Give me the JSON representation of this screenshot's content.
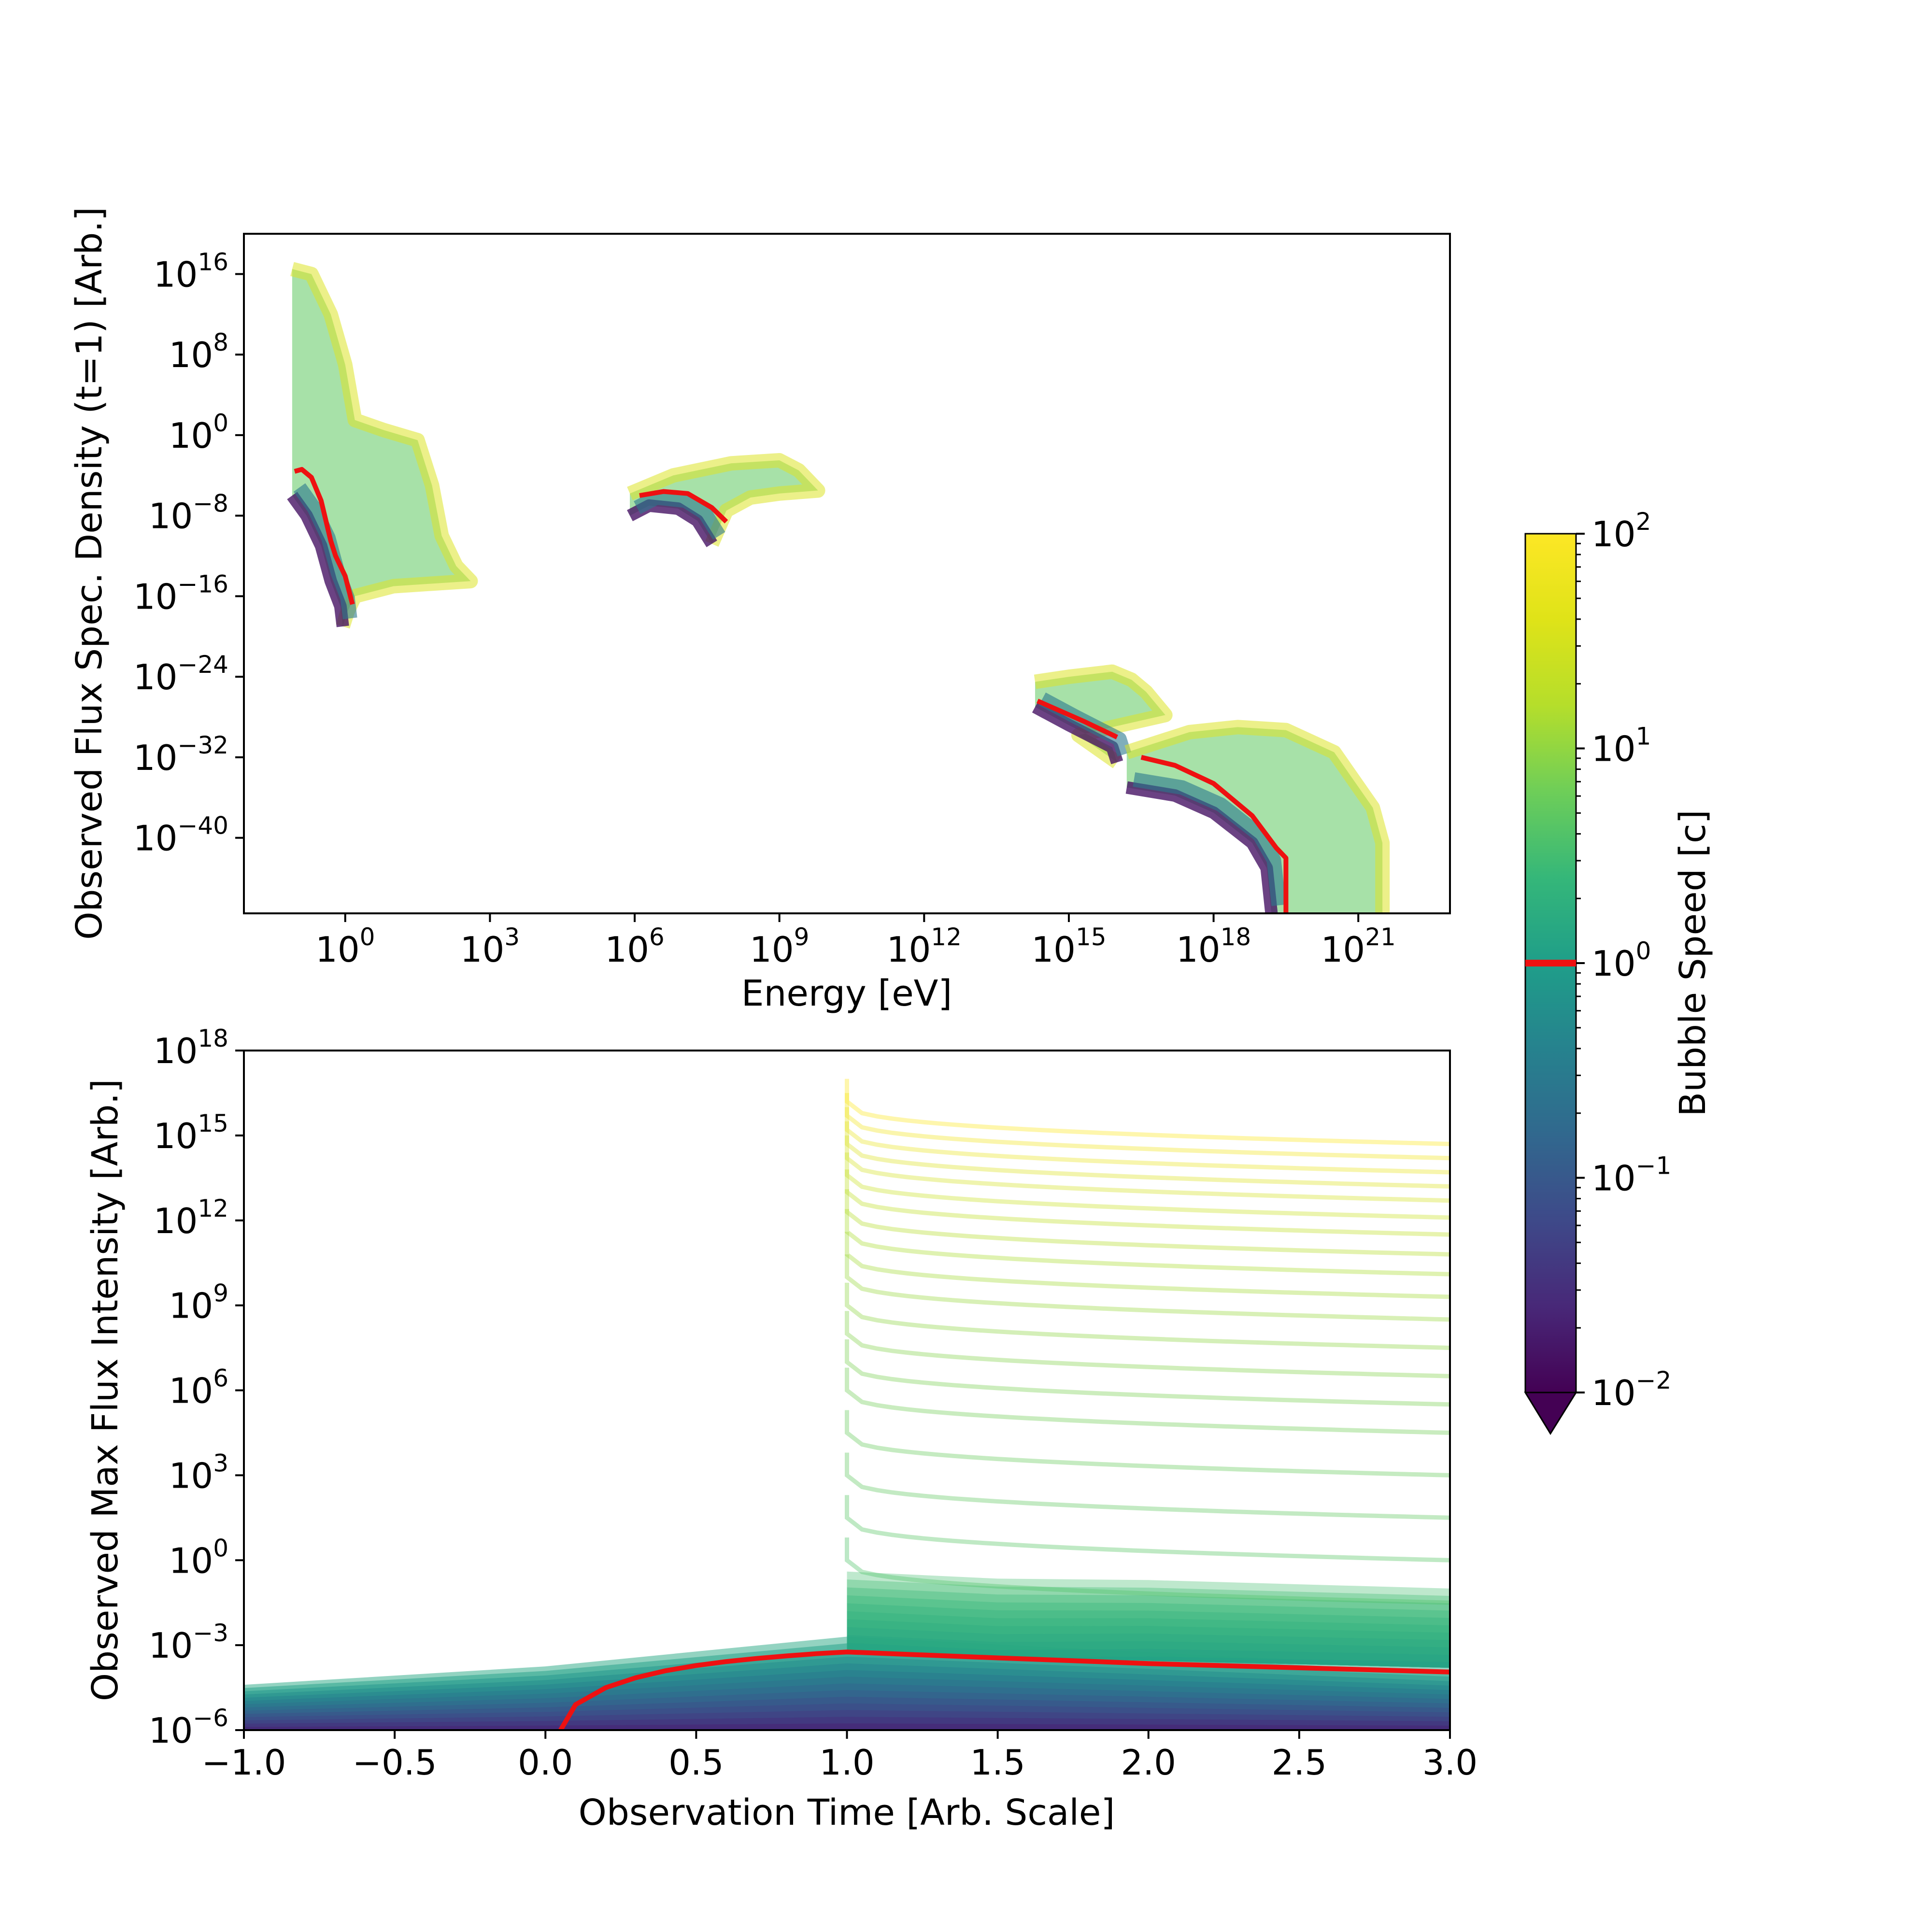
{
  "chart_data": [
    {
      "type": "area",
      "xlabel": "Energy [eV]",
      "ylabel": "Observed Flux Spec. Density (t=1) [Arb.]",
      "xscale": "log",
      "yscale": "log",
      "xlim_log10": [
        -2.1,
        22.9
      ],
      "ylim_log10": [
        -47.5,
        20.0
      ],
      "xticks": [
        {
          "base": "10",
          "exp": "0",
          "log10": 0
        },
        {
          "base": "10",
          "exp": "3",
          "log10": 3
        },
        {
          "base": "10",
          "exp": "6",
          "log10": 6
        },
        {
          "base": "10",
          "exp": "9",
          "log10": 9
        },
        {
          "base": "10",
          "exp": "12",
          "log10": 12
        },
        {
          "base": "10",
          "exp": "15",
          "log10": 15
        },
        {
          "base": "10",
          "exp": "18",
          "log10": 18
        },
        {
          "base": "10",
          "exp": "21",
          "log10": 21
        }
      ],
      "yticks": [
        {
          "base": "10",
          "exp": "16",
          "log10": 16
        },
        {
          "base": "10",
          "exp": "8",
          "log10": 8
        },
        {
          "base": "10",
          "exp": "0",
          "log10": 0
        },
        {
          "base": "10",
          "exp": "−8",
          "log10": -8
        },
        {
          "base": "10",
          "exp": "−16",
          "log10": -16
        },
        {
          "base": "10",
          "exp": "−24",
          "log10": -24
        },
        {
          "base": "10",
          "exp": "−32",
          "log10": -32
        },
        {
          "base": "10",
          "exp": "−40",
          "log10": -40
        }
      ],
      "bands": [
        {
          "low_speed_edge": [
            [
              -1.1,
              -6.0
            ],
            [
              -0.8,
              -8.0
            ],
            [
              -0.5,
              -11.0
            ],
            [
              -0.3,
              -14.5
            ],
            [
              -0.1,
              -17.0
            ],
            [
              -0.05,
              -19.0
            ]
          ],
          "high_speed_edge": [
            [
              -1.1,
              16.5
            ],
            [
              -0.7,
              16.0
            ],
            [
              -0.3,
              12.0
            ],
            [
              0.0,
              7.0
            ],
            [
              0.2,
              1.5
            ],
            [
              0.8,
              0.5
            ],
            [
              1.5,
              -0.5
            ],
            [
              1.8,
              -5.0
            ],
            [
              2.0,
              -10.0
            ],
            [
              2.3,
              -13.0
            ],
            [
              2.6,
              -14.5
            ],
            [
              1.0,
              -15.0
            ],
            [
              0.2,
              -16.0
            ],
            [
              0.05,
              -17.5
            ],
            [
              -0.05,
              -19.0
            ]
          ]
        },
        {
          "low_speed_edge": [
            [
              5.9,
              -8.0
            ],
            [
              6.3,
              -7.0
            ],
            [
              6.9,
              -7.3
            ],
            [
              7.3,
              -8.5
            ],
            [
              7.6,
              -10.8
            ]
          ],
          "high_speed_edge": [
            [
              5.9,
              -5.8
            ],
            [
              6.8,
              -4.0
            ],
            [
              8.0,
              -2.8
            ],
            [
              9.0,
              -2.5
            ],
            [
              9.4,
              -3.5
            ],
            [
              9.8,
              -5.5
            ],
            [
              9.0,
              -5.8
            ],
            [
              8.4,
              -6.2
            ],
            [
              7.9,
              -7.5
            ],
            [
              7.6,
              -10.8
            ]
          ]
        },
        {
          "low_speed_edge": [
            [
              14.3,
              -27.0
            ],
            [
              15.0,
              -28.8
            ],
            [
              15.9,
              -31.0
            ],
            [
              16.0,
              -32.5
            ]
          ],
          "high_speed_edge": [
            [
              14.3,
              -24.5
            ],
            [
              15.0,
              -24.0
            ],
            [
              15.9,
              -23.5
            ],
            [
              16.3,
              -24.3
            ],
            [
              16.6,
              -25.5
            ],
            [
              17.0,
              -27.8
            ],
            [
              15.9,
              -29.0
            ],
            [
              15.2,
              -29.8
            ],
            [
              16.0,
              -32.5
            ]
          ]
        },
        {
          "low_speed_edge": [
            [
              16.2,
              -35.0
            ],
            [
              17.2,
              -35.8
            ],
            [
              18.0,
              -37.5
            ],
            [
              18.8,
              -40.5
            ],
            [
              19.1,
              -43.0
            ],
            [
              19.2,
              -47.5
            ]
          ],
          "high_speed_edge": [
            [
              16.2,
              -31.5
            ],
            [
              17.5,
              -29.5
            ],
            [
              18.5,
              -29.0
            ],
            [
              19.5,
              -29.3
            ],
            [
              20.5,
              -31.5
            ],
            [
              21.3,
              -37.0
            ],
            [
              21.5,
              -40.5
            ],
            [
              21.5,
              -47.5
            ]
          ]
        }
      ],
      "reference_speed_c": 1,
      "reference_curve_segments": [
        [
          [
            -1.05,
            -3.6
          ],
          [
            -0.9,
            -3.4
          ],
          [
            -0.7,
            -4.2
          ],
          [
            -0.5,
            -6.5
          ],
          [
            -0.3,
            -10.5
          ],
          [
            -0.2,
            -12.0
          ],
          [
            0.0,
            -14.0
          ],
          [
            0.15,
            -16.8
          ]
        ],
        [
          [
            6.1,
            -6.0
          ],
          [
            6.6,
            -5.6
          ],
          [
            7.1,
            -5.8
          ],
          [
            7.6,
            -7.2
          ],
          [
            7.9,
            -8.6
          ]
        ],
        [
          [
            14.35,
            -26.4
          ],
          [
            15.3,
            -28.4
          ],
          [
            16.0,
            -30.0
          ]
        ],
        [
          [
            16.5,
            -32.0
          ],
          [
            17.2,
            -32.8
          ],
          [
            18.0,
            -34.6
          ],
          [
            18.8,
            -37.8
          ],
          [
            19.3,
            -41.0
          ],
          [
            19.5,
            -42.0
          ],
          [
            19.5,
            -47.5
          ]
        ]
      ]
    },
    {
      "type": "line",
      "xlabel": "Observation Time [Arb. Scale]",
      "ylabel": "Observed Max Flux Intensity [Arb.]",
      "xlim": [
        -1.0,
        3.0
      ],
      "ylim_log10": [
        -6,
        18
      ],
      "yscale": "log",
      "xticks": [
        "−1.0",
        "−0.5",
        "0.0",
        "0.5",
        "1.0",
        "1.5",
        "2.0",
        "2.5",
        "3.0"
      ],
      "xtick_values": [
        -1.0,
        -0.5,
        0.0,
        0.5,
        1.0,
        1.5,
        2.0,
        2.5,
        3.0
      ],
      "yticks": [
        {
          "base": "10",
          "exp": "−6",
          "log10": -6
        },
        {
          "base": "10",
          "exp": "−3",
          "log10": -3
        },
        {
          "base": "10",
          "exp": "0",
          "log10": 0
        },
        {
          "base": "10",
          "exp": "3",
          "log10": 3
        },
        {
          "base": "10",
          "exp": "6",
          "log10": 6
        },
        {
          "base": "10",
          "exp": "9",
          "log10": 9
        },
        {
          "base": "10",
          "exp": "12",
          "log10": 12
        },
        {
          "base": "10",
          "exp": "15",
          "log10": 15
        },
        {
          "base": "10",
          "exp": "18",
          "log10": 18
        }
      ],
      "fast_curves_log10_peak_at_t1": [
        0.0,
        1.5,
        3.0,
        4.5,
        6.0,
        7.0,
        8.0,
        9.0,
        10.0,
        10.8,
        11.6,
        12.3,
        13.0,
        13.6,
        14.2,
        14.7,
        15.2,
        15.7,
        16.2
      ],
      "fast_curves_log10_at_t3": [
        -1.5,
        0.0,
        1.5,
        3.0,
        4.5,
        5.5,
        6.5,
        7.5,
        8.5,
        9.3,
        10.1,
        10.8,
        11.5,
        12.1,
        12.7,
        13.2,
        13.7,
        14.2,
        14.7
      ],
      "reference_speed_c": 1,
      "reference_curve": {
        "t": [
          0.05,
          0.1,
          0.2,
          0.3,
          0.4,
          0.5,
          0.6,
          0.7,
          0.8,
          0.9,
          1.0,
          1.5,
          2.0,
          2.5,
          3.0
        ],
        "log10_flux": [
          -6.0,
          -5.1,
          -4.5,
          -4.15,
          -3.9,
          -3.72,
          -3.58,
          -3.47,
          -3.38,
          -3.3,
          -3.24,
          -3.45,
          -3.65,
          -3.8,
          -3.95
        ]
      }
    }
  ],
  "colorbar": {
    "label": "Bubble Speed [c]",
    "colormap": "viridis",
    "range_log10": [
      -2,
      2
    ],
    "ticks": [
      {
        "base": "10",
        "exp": "2",
        "log10": 2
      },
      {
        "base": "10",
        "exp": "1",
        "log10": 1
      },
      {
        "base": "10",
        "exp": "0",
        "log10": 0
      },
      {
        "base": "10",
        "exp": "−1",
        "log10": -1
      },
      {
        "base": "10",
        "exp": "−2",
        "log10": -2
      }
    ],
    "extend": "min",
    "reference_marker_log10": 0,
    "reference_color": "#ee1111"
  },
  "colors": {
    "reference": "#ee1111",
    "viridis_low": "#440154",
    "viridis_mid": "#21918c",
    "viridis_high": "#fde725"
  }
}
